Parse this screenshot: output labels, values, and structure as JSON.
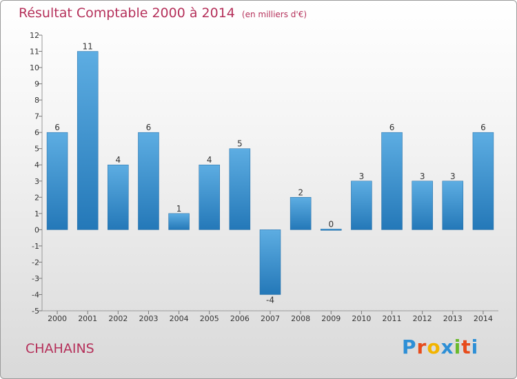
{
  "title": "Résultat Comptable 2000 à 2014",
  "subtitle": "(en milliers d'€)",
  "place": "CHAHAINS",
  "logo": {
    "letters": [
      "P",
      "r",
      "o",
      "x",
      "i",
      "t",
      "i"
    ],
    "colors": [
      "#2d8fd6",
      "#e74c1c",
      "#f2b400",
      "#2d8fd6",
      "#6ab92c",
      "#e74c1c",
      "#2d8fd6"
    ]
  },
  "chart_data": {
    "type": "bar",
    "title": "Résultat Comptable 2000 à 2014",
    "subtitle": "(en milliers d'€)",
    "xlabel": "",
    "ylabel": "",
    "categories": [
      "2000",
      "2001",
      "2002",
      "2003",
      "2004",
      "2005",
      "2006",
      "2007",
      "2008",
      "2009",
      "2010",
      "2011",
      "2012",
      "2013",
      "2014"
    ],
    "values": [
      6,
      11,
      4,
      6,
      1,
      4,
      5,
      -4,
      2,
      0,
      3,
      6,
      3,
      3,
      6
    ],
    "ylim": [
      -5,
      12
    ],
    "yticks": [
      -5,
      -4,
      -3,
      -2,
      -1,
      0,
      1,
      2,
      3,
      4,
      5,
      6,
      7,
      8,
      9,
      10,
      11,
      12
    ],
    "grid": false,
    "bar_color_top": "#5dade2",
    "bar_color_bottom": "#2478b8"
  }
}
